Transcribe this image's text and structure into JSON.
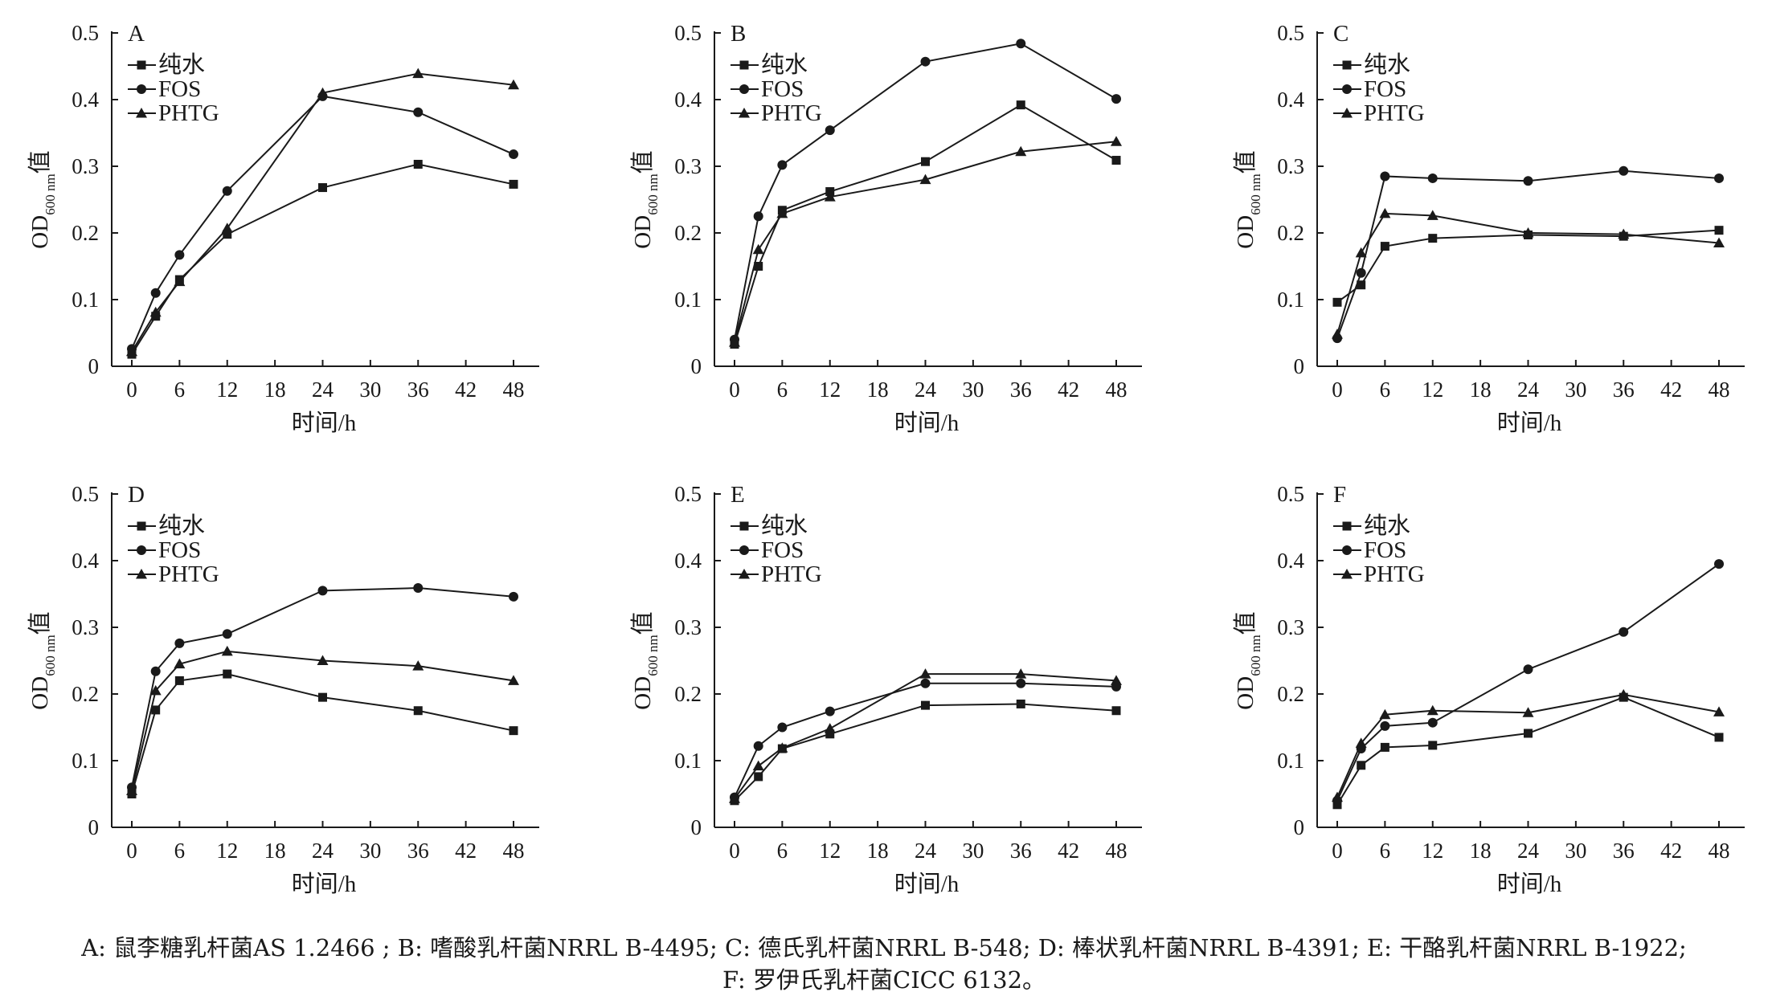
{
  "figure": {
    "caption_line1": "A: 鼠李糖乳杆菌AS 1.2466 ; B: 嗜酸乳杆菌NRRL B-4495; C: 德氏乳杆菌NRRL B-548; D: 棒状乳杆菌NRRL B-4391; E: 干酪乳杆菌NRRL B-1922;",
    "caption_line2": "F: 罗伊氏乳杆菌CICC 6132。"
  },
  "colors": {
    "line": "#1a1a1a",
    "background": "#ffffff"
  },
  "chart_data": [
    {
      "type": "line",
      "panel": "A",
      "xlabel": "时间/h",
      "ylabel_main": "OD",
      "ylabel_sub": "600 nm",
      "ylabel_suffix": "值",
      "xlim": [
        0,
        48
      ],
      "ylim": [
        0,
        0.5
      ],
      "grid": false,
      "legend": "top-left",
      "xticks": [
        "0",
        "6",
        "12",
        "18",
        "24",
        "30",
        "36",
        "42",
        "48"
      ],
      "yticks": [
        "0",
        "0.1",
        "0.2",
        "0.3",
        "0.4",
        "0.5"
      ],
      "x": [
        0,
        3,
        6,
        12,
        24,
        36,
        48
      ],
      "series": [
        {
          "name": "纯水",
          "marker": "square",
          "values": [
            0.018,
            0.075,
            0.13,
            0.198,
            0.268,
            0.303,
            0.273
          ]
        },
        {
          "name": "FOS",
          "marker": "circle",
          "values": [
            0.026,
            0.11,
            0.167,
            0.263,
            0.405,
            0.381,
            0.318
          ]
        },
        {
          "name": "PHTG",
          "marker": "triangle",
          "values": [
            0.022,
            0.081,
            0.127,
            0.207,
            0.41,
            0.439,
            0.422
          ]
        }
      ]
    },
    {
      "type": "line",
      "panel": "B",
      "xlabel": "时间/h",
      "ylabel_main": "OD",
      "ylabel_sub": "600 nm",
      "ylabel_suffix": "值",
      "xlim": [
        0,
        48
      ],
      "ylim": [
        0,
        0.5
      ],
      "grid": false,
      "legend": "top-left",
      "xticks": [
        "0",
        "6",
        "12",
        "18",
        "24",
        "30",
        "36",
        "42",
        "48"
      ],
      "yticks": [
        "0",
        "0.1",
        "0.2",
        "0.3",
        "0.4",
        "0.5"
      ],
      "x": [
        0,
        3,
        6,
        12,
        24,
        36,
        48
      ],
      "series": [
        {
          "name": "纯水",
          "marker": "square",
          "values": [
            0.033,
            0.15,
            0.234,
            0.262,
            0.307,
            0.392,
            0.309
          ]
        },
        {
          "name": "FOS",
          "marker": "circle",
          "values": [
            0.04,
            0.225,
            0.302,
            0.354,
            0.457,
            0.484,
            0.401
          ]
        },
        {
          "name": "PHTG",
          "marker": "triangle",
          "values": [
            0.036,
            0.175,
            0.229,
            0.254,
            0.28,
            0.322,
            0.337
          ]
        }
      ]
    },
    {
      "type": "line",
      "panel": "C",
      "xlabel": "时间/h",
      "ylabel_main": "OD",
      "ylabel_sub": "600 nm",
      "ylabel_suffix": "值",
      "xlim": [
        0,
        48
      ],
      "ylim": [
        0,
        0.5
      ],
      "grid": false,
      "legend": "top-left",
      "xticks": [
        "0",
        "6",
        "12",
        "18",
        "24",
        "30",
        "36",
        "42",
        "48"
      ],
      "yticks": [
        "0",
        "0.1",
        "0.2",
        "0.3",
        "0.4",
        "0.5"
      ],
      "x": [
        0,
        3,
        6,
        12,
        24,
        36,
        48
      ],
      "series": [
        {
          "name": "纯水",
          "marker": "square",
          "values": [
            0.096,
            0.122,
            0.18,
            0.192,
            0.197,
            0.195,
            0.204
          ]
        },
        {
          "name": "FOS",
          "marker": "circle",
          "values": [
            0.042,
            0.14,
            0.285,
            0.282,
            0.278,
            0.293,
            0.282
          ]
        },
        {
          "name": "PHTG",
          "marker": "triangle",
          "values": [
            0.048,
            0.17,
            0.229,
            0.226,
            0.2,
            0.198,
            0.185
          ]
        }
      ]
    },
    {
      "type": "line",
      "panel": "D",
      "xlabel": "时间/h",
      "ylabel_main": "OD",
      "ylabel_sub": "600 nm",
      "ylabel_suffix": "值",
      "xlim": [
        0,
        48
      ],
      "ylim": [
        0,
        0.5
      ],
      "grid": false,
      "legend": "top-left",
      "xticks": [
        "0",
        "6",
        "12",
        "18",
        "24",
        "30",
        "36",
        "42",
        "48"
      ],
      "yticks": [
        "0",
        "0.1",
        "0.2",
        "0.3",
        "0.4",
        "0.5"
      ],
      "x": [
        0,
        3,
        6,
        12,
        24,
        36,
        48
      ],
      "series": [
        {
          "name": "纯水",
          "marker": "square",
          "values": [
            0.05,
            0.176,
            0.22,
            0.23,
            0.195,
            0.175,
            0.145
          ]
        },
        {
          "name": "FOS",
          "marker": "circle",
          "values": [
            0.06,
            0.234,
            0.276,
            0.29,
            0.355,
            0.359,
            0.346
          ]
        },
        {
          "name": "PHTG",
          "marker": "triangle",
          "values": [
            0.055,
            0.205,
            0.245,
            0.264,
            0.25,
            0.242,
            0.22
          ]
        }
      ]
    },
    {
      "type": "line",
      "panel": "E",
      "xlabel": "时间/h",
      "ylabel_main": "OD",
      "ylabel_sub": "600 nm",
      "ylabel_suffix": "值",
      "xlim": [
        0,
        48
      ],
      "ylim": [
        0,
        0.5
      ],
      "grid": false,
      "legend": "top-left",
      "xticks": [
        "0",
        "6",
        "12",
        "18",
        "24",
        "30",
        "36",
        "42",
        "48"
      ],
      "yticks": [
        "0",
        "0.1",
        "0.2",
        "0.3",
        "0.4",
        "0.5"
      ],
      "x": [
        0,
        3,
        6,
        12,
        24,
        36,
        48
      ],
      "series": [
        {
          "name": "纯水",
          "marker": "square",
          "values": [
            0.04,
            0.076,
            0.118,
            0.14,
            0.183,
            0.185,
            0.175
          ]
        },
        {
          "name": "FOS",
          "marker": "circle",
          "values": [
            0.045,
            0.122,
            0.15,
            0.174,
            0.216,
            0.216,
            0.211
          ]
        },
        {
          "name": "PHTG",
          "marker": "triangle",
          "values": [
            0.043,
            0.092,
            0.119,
            0.148,
            0.23,
            0.23,
            0.22
          ]
        }
      ]
    },
    {
      "type": "line",
      "panel": "F",
      "xlabel": "时间/h",
      "ylabel_main": "OD",
      "ylabel_sub": "600 nm",
      "ylabel_suffix": "值",
      "xlim": [
        0,
        48
      ],
      "ylim": [
        0,
        0.5
      ],
      "grid": false,
      "legend": "top-left",
      "xticks": [
        "0",
        "6",
        "12",
        "18",
        "24",
        "30",
        "36",
        "42",
        "48"
      ],
      "yticks": [
        "0",
        "0.1",
        "0.2",
        "0.3",
        "0.4",
        "0.5"
      ],
      "x": [
        0,
        3,
        6,
        12,
        24,
        36,
        48
      ],
      "series": [
        {
          "name": "纯水",
          "marker": "square",
          "values": [
            0.034,
            0.093,
            0.12,
            0.123,
            0.141,
            0.195,
            0.135
          ]
        },
        {
          "name": "FOS",
          "marker": "circle",
          "values": [
            0.04,
            0.118,
            0.152,
            0.157,
            0.237,
            0.293,
            0.395
          ]
        },
        {
          "name": "PHTG",
          "marker": "triangle",
          "values": [
            0.045,
            0.126,
            0.169,
            0.175,
            0.172,
            0.199,
            0.173
          ]
        }
      ]
    }
  ]
}
